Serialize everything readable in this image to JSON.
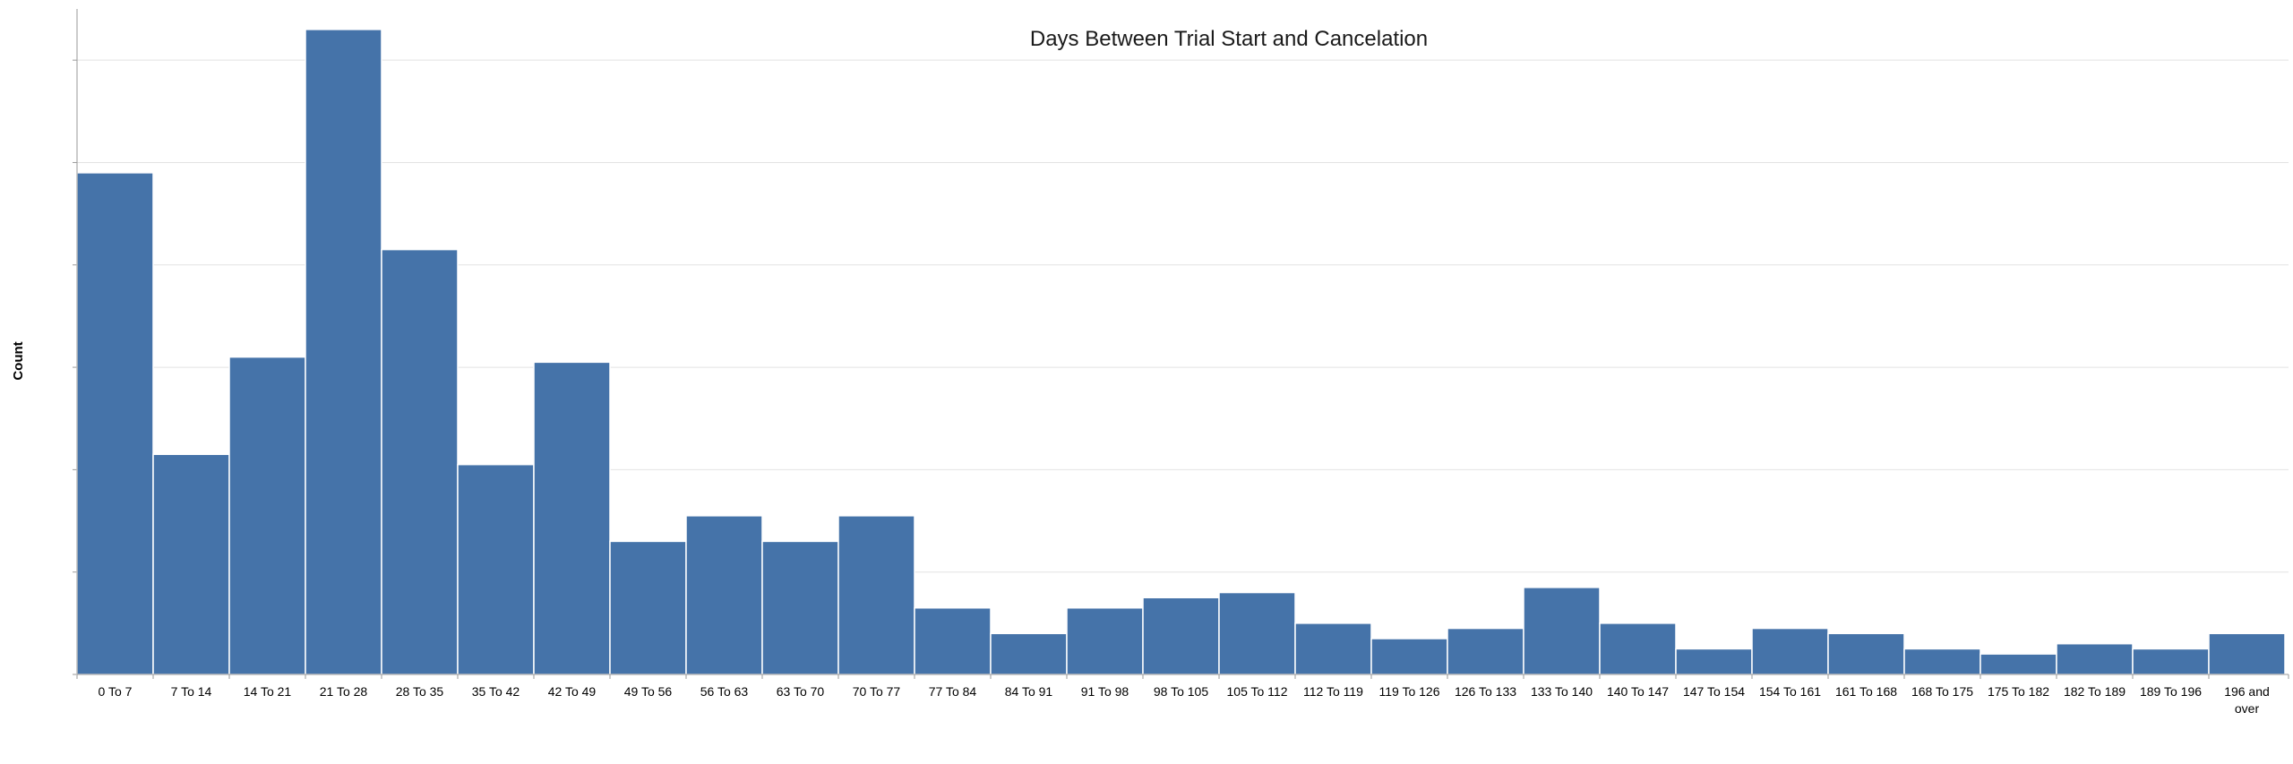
{
  "chart_data": {
    "type": "bar",
    "title": "Days Between Trial Start and Cancelation",
    "xlabel": "",
    "ylabel": "Count",
    "categories": [
      "0 To 7",
      "7 To 14",
      "14 To 21",
      "21 To 28",
      "28 To 35",
      "35 To 42",
      "42 To 49",
      "49 To 56",
      "56 To 63",
      "63 To 70",
      "70 To 77",
      "77 To 84",
      "84 To 91",
      "91 To 98",
      "98 To 105",
      "105 To 112",
      "112 To 119",
      "119 To 126",
      "126 To 133",
      "133 To 140",
      "140 To 147",
      "147 To 154",
      "154 To 161",
      "161 To 168",
      "168 To 175",
      "175 To 182",
      "182 To 189",
      "189 To 196",
      "196 and over"
    ],
    "values": [
      89,
      34,
      53,
      117,
      74,
      32,
      52,
      17,
      22,
      17,
      22,
      4,
      -1,
      4,
      6,
      7,
      1,
      -2,
      0,
      8,
      1,
      -4,
      0,
      -1,
      -4,
      -5,
      -3,
      -4,
      -1
    ],
    "ylim": [
      -9,
      121
    ],
    "y_gridlines": [
      -9,
      11,
      31,
      51,
      71,
      91,
      111
    ],
    "y_tick_labels_visible": false,
    "grid": true,
    "bar_color": "#4573a9",
    "gridline_color": "#e3e3e3",
    "axis_color": "#9a9a9a"
  }
}
